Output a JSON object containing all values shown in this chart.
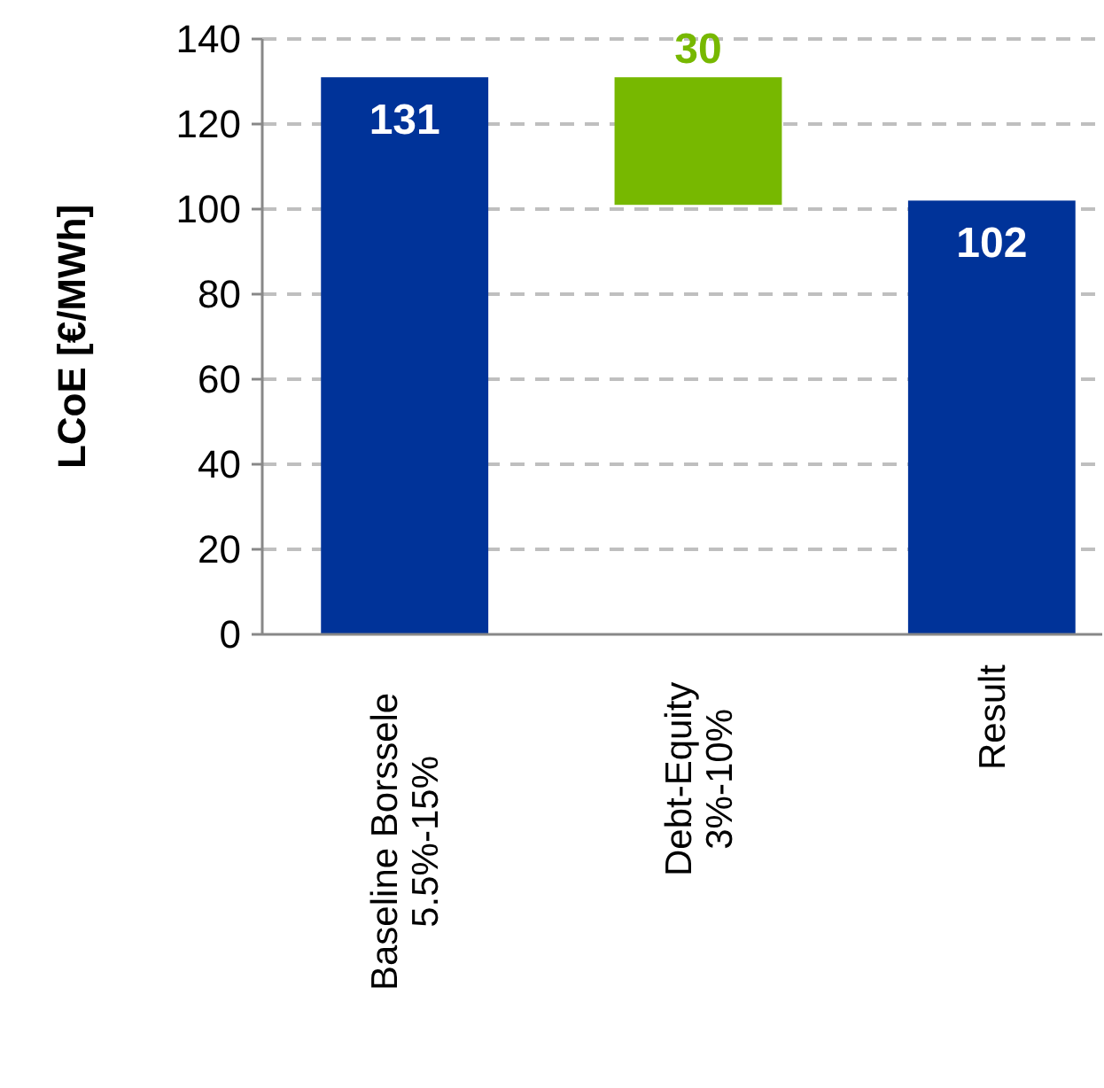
{
  "chart_data": {
    "type": "bar",
    "ylabel": "LCoE [€/MWh]",
    "categories": [
      "Baseline Borssele\n5.5%-15%",
      "Debt-Equity\n3%-10%",
      "Result"
    ],
    "values": [
      131,
      30,
      102
    ],
    "base": [
      0,
      101,
      0
    ],
    "colors": [
      "#003399",
      "#77b800",
      "#003399"
    ],
    "ylim": [
      0,
      140
    ],
    "yticks": [
      0,
      20,
      40,
      60,
      80,
      100,
      120,
      140
    ],
    "grid": "y",
    "data_labels": true
  }
}
